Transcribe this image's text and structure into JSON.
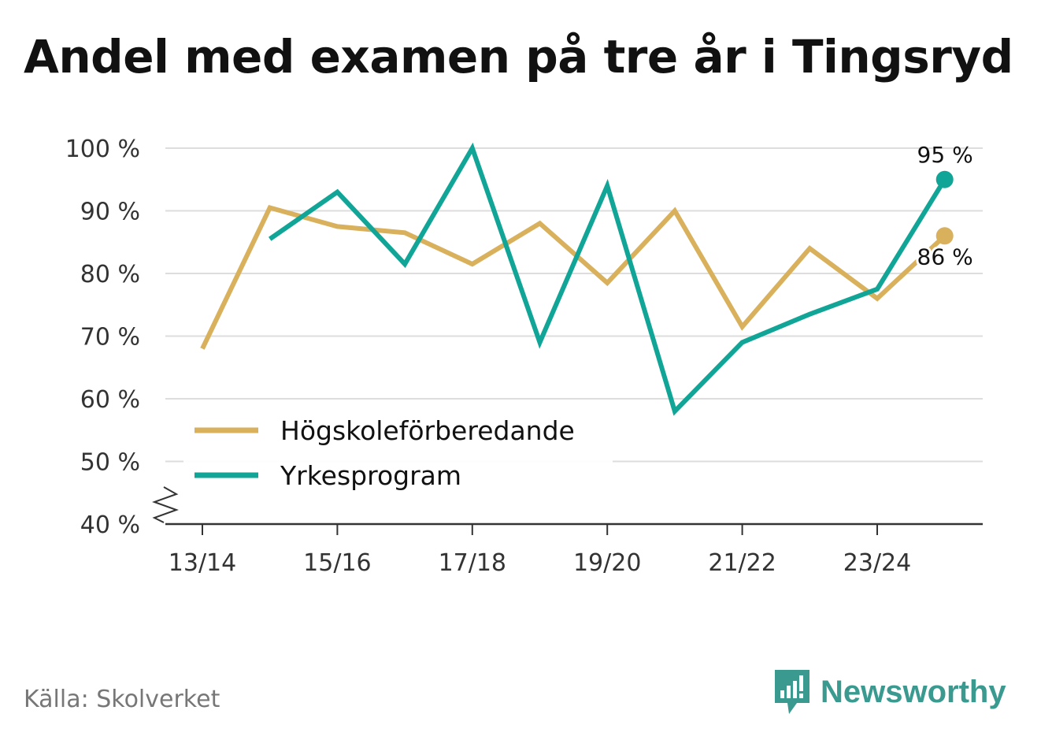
{
  "title": "Andel med examen på tre år i Tingsryd",
  "source": "Källa: Skolverket",
  "brand": "Newsworthy",
  "colors": {
    "hogskole": "#d9b05c",
    "yrke": "#10a596",
    "grid": "#dddddd",
    "axis": "#333333",
    "brand": "#3a9a90"
  },
  "chart_data": {
    "type": "line",
    "x": [
      "13/14",
      "14/15",
      "15/16",
      "16/17",
      "17/18",
      "18/19",
      "19/20",
      "20/21",
      "21/22",
      "22/23",
      "23/24",
      "24/25"
    ],
    "x_tick_labels": [
      "13/14",
      "15/16",
      "17/18",
      "19/20",
      "21/22",
      "23/24"
    ],
    "y_tick_labels": [
      "40 %",
      "50 %",
      "60 %",
      "70 %",
      "80 %",
      "90 %",
      "100 %"
    ],
    "ylim": [
      40,
      100
    ],
    "y_axis_broken": true,
    "grid": true,
    "legend_position": "bottom-left",
    "series": [
      {
        "name": "Högskoleförberedande",
        "values": [
          68,
          90.5,
          87.5,
          86.5,
          81.5,
          88,
          78.5,
          90,
          71.5,
          84,
          76,
          86
        ],
        "end_label": "86 %"
      },
      {
        "name": "Yrkesprogram",
        "values": [
          null,
          85.5,
          93,
          81.5,
          100,
          69,
          94,
          58,
          69,
          73.5,
          77.5,
          95
        ],
        "end_label": "95 %"
      }
    ]
  }
}
